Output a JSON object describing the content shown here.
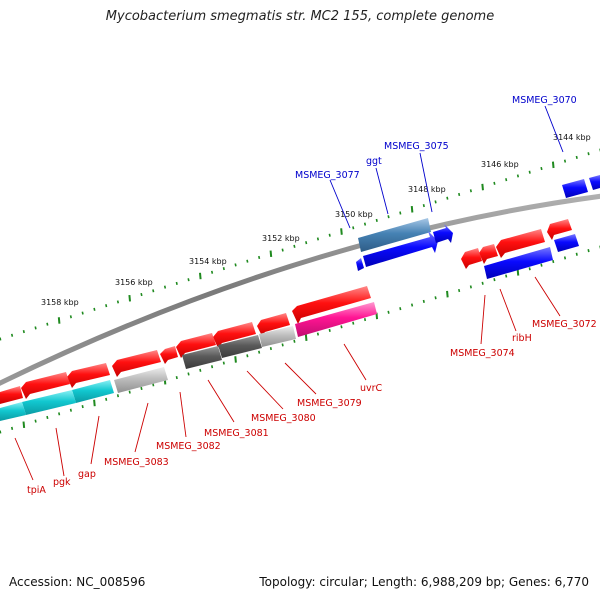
{
  "header": {
    "title": "Mycobacterium smegmatis str. MC2 155, complete genome"
  },
  "footer": {
    "accession": "Accession: NC_008596",
    "topology": "Topology: circular; Length: 6,988,209 bp; Genes: 6,770"
  },
  "ticks": [
    "3144 kbp",
    "3146 kbp",
    "3148 kbp",
    "3150 kbp",
    "3152 kbp",
    "3154 kbp",
    "3156 kbp",
    "3158 kbp"
  ],
  "genes": {
    "forward": [
      "MSMEG_3070",
      "MSMEG_3075",
      "ggt",
      "MSMEG_3077"
    ],
    "reverse": [
      "MSMEG_3072",
      "ribH",
      "MSMEG_3074",
      "uvrC",
      "MSMEG_3079",
      "MSMEG_3080",
      "MSMEG_3081",
      "MSMEG_3082",
      "MSMEG_3083",
      "gap",
      "pgk",
      "tpiA"
    ]
  },
  "colors": {
    "forward_strand": "#0000ee",
    "reverse_strand": "#ee0000",
    "rrna_cyan": "#00c8d2",
    "ncrna_magenta": "#ff1493",
    "steelblue": "#4682b4",
    "darkgray": "#555555",
    "silver": "#b0b0b0",
    "tick_green": "#1f8a1f",
    "backbone": "#808080"
  }
}
